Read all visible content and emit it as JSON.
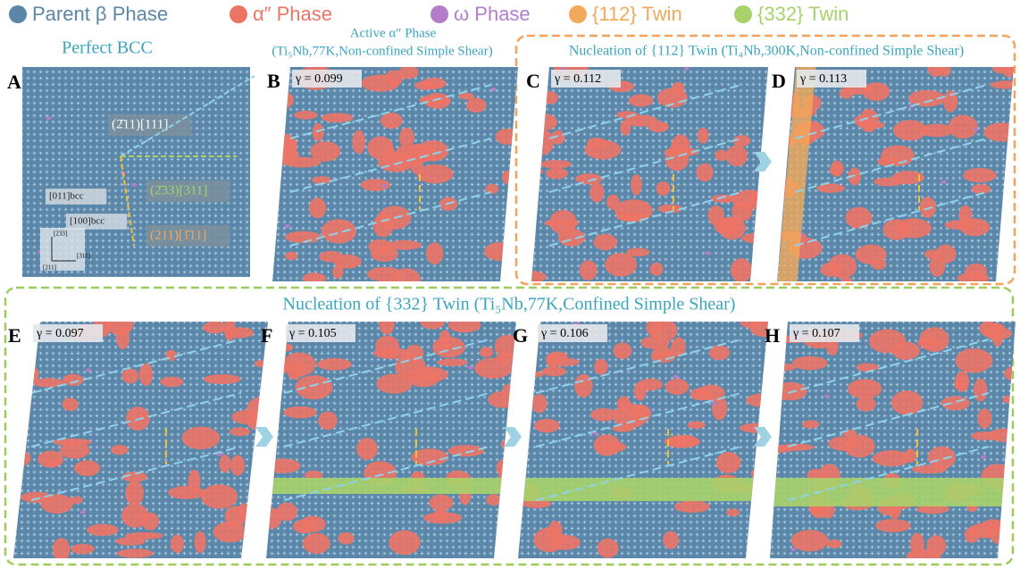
{
  "legend": [
    {
      "label": "Parent β Phase",
      "color": "#5b86a8"
    },
    {
      "label": "α″ Phase",
      "color": "#ec7466"
    },
    {
      "label": "ω Phase",
      "color": "#b57ccb"
    },
    {
      "label": "{112} Twin",
      "color": "#f2aa5a"
    },
    {
      "label": "{332} Twin",
      "color": "#a9d36a"
    }
  ],
  "titles": {
    "perfect": "Perfect BCC",
    "active": "Active α″ Phase",
    "active_sub": "(Ti₅Nb,77K,Non-confined Simple Shear)",
    "twin112": "Nucleation of {112} Twin (Ti₄Nb,300K,Non-confined Simple Shear)",
    "twin332": "Nucleation of {332} Twin (Ti₅Nb,77K,Confined Simple Shear)"
  },
  "panel_a": {
    "letter": "A",
    "annotations": [
      "(2̄11)[111]",
      "(2̄33)[311]",
      "(211)[1̄11]",
      "[011]bcc",
      "[100]bcc"
    ],
    "axes": [
      "[233]",
      "[311]",
      "[211]"
    ]
  },
  "panels": [
    {
      "letter": "B",
      "gamma": "γ = 0.099"
    },
    {
      "letter": "C",
      "gamma": "γ = 0.112"
    },
    {
      "letter": "D",
      "gamma": "γ = 0.113"
    },
    {
      "letter": "E",
      "gamma": "γ = 0.097"
    },
    {
      "letter": "F",
      "gamma": "γ = 0.105"
    },
    {
      "letter": "G",
      "gamma": "γ = 0.106"
    },
    {
      "letter": "H",
      "gamma": "γ = 0.107"
    }
  ]
}
